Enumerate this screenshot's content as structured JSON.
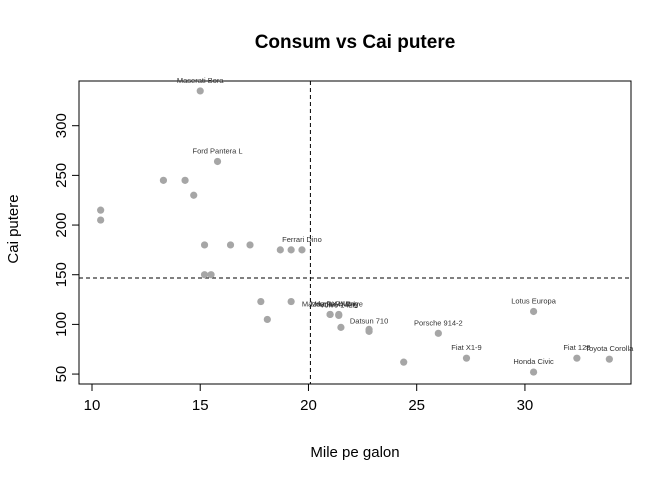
{
  "chart_data": {
    "type": "scatter",
    "title": "Consum vs Cai putere",
    "xlabel": "Mile pe galon",
    "ylabel": "Cai putere",
    "xlim": [
      9.4,
      34.9
    ],
    "ylim": [
      40,
      345
    ],
    "xticks": [
      10,
      15,
      20,
      25,
      30
    ],
    "yticks": [
      50,
      100,
      150,
      200,
      250,
      300
    ],
    "point_color": "#a6a6a6",
    "reference_lines": {
      "vline_x": 20.09,
      "hline_y": 146.69,
      "style": "dashed"
    },
    "points": [
      {
        "x": 21.0,
        "y": 110,
        "label": "Mazda RX4"
      },
      {
        "x": 21.0,
        "y": 110,
        "label": "Mazda RX4 Wag"
      },
      {
        "x": 22.8,
        "y": 93,
        "label": "Datsun 710"
      },
      {
        "x": 21.4,
        "y": 110,
        "label": "Hornet 4 Drive"
      },
      {
        "x": 18.7,
        "y": 175,
        "label": ""
      },
      {
        "x": 18.1,
        "y": 105,
        "label": ""
      },
      {
        "x": 14.3,
        "y": 245,
        "label": ""
      },
      {
        "x": 24.4,
        "y": 62,
        "label": ""
      },
      {
        "x": 22.8,
        "y": 95,
        "label": ""
      },
      {
        "x": 19.2,
        "y": 123,
        "label": ""
      },
      {
        "x": 17.8,
        "y": 123,
        "label": ""
      },
      {
        "x": 16.4,
        "y": 180,
        "label": ""
      },
      {
        "x": 17.3,
        "y": 180,
        "label": ""
      },
      {
        "x": 15.2,
        "y": 180,
        "label": ""
      },
      {
        "x": 10.4,
        "y": 205,
        "label": ""
      },
      {
        "x": 10.4,
        "y": 215,
        "label": ""
      },
      {
        "x": 14.7,
        "y": 230,
        "label": ""
      },
      {
        "x": 32.4,
        "y": 66,
        "label": "Fiat 128"
      },
      {
        "x": 30.4,
        "y": 52,
        "label": "Honda Civic"
      },
      {
        "x": 33.9,
        "y": 65,
        "label": "Toyota Corolla"
      },
      {
        "x": 21.5,
        "y": 97,
        "label": ""
      },
      {
        "x": 15.5,
        "y": 150,
        "label": ""
      },
      {
        "x": 15.2,
        "y": 150,
        "label": ""
      },
      {
        "x": 13.3,
        "y": 245,
        "label": ""
      },
      {
        "x": 19.2,
        "y": 175,
        "label": ""
      },
      {
        "x": 27.3,
        "y": 66,
        "label": "Fiat X1-9"
      },
      {
        "x": 26.0,
        "y": 91,
        "label": "Porsche 914-2"
      },
      {
        "x": 30.4,
        "y": 113,
        "label": "Lotus Europa"
      },
      {
        "x": 15.8,
        "y": 264,
        "label": "Ford Pantera L"
      },
      {
        "x": 19.7,
        "y": 175,
        "label": "Ferrari Dino"
      },
      {
        "x": 15.0,
        "y": 335,
        "label": "Maserati Bora"
      },
      {
        "x": 21.4,
        "y": 109,
        "label": "Volvo 142E"
      }
    ]
  }
}
